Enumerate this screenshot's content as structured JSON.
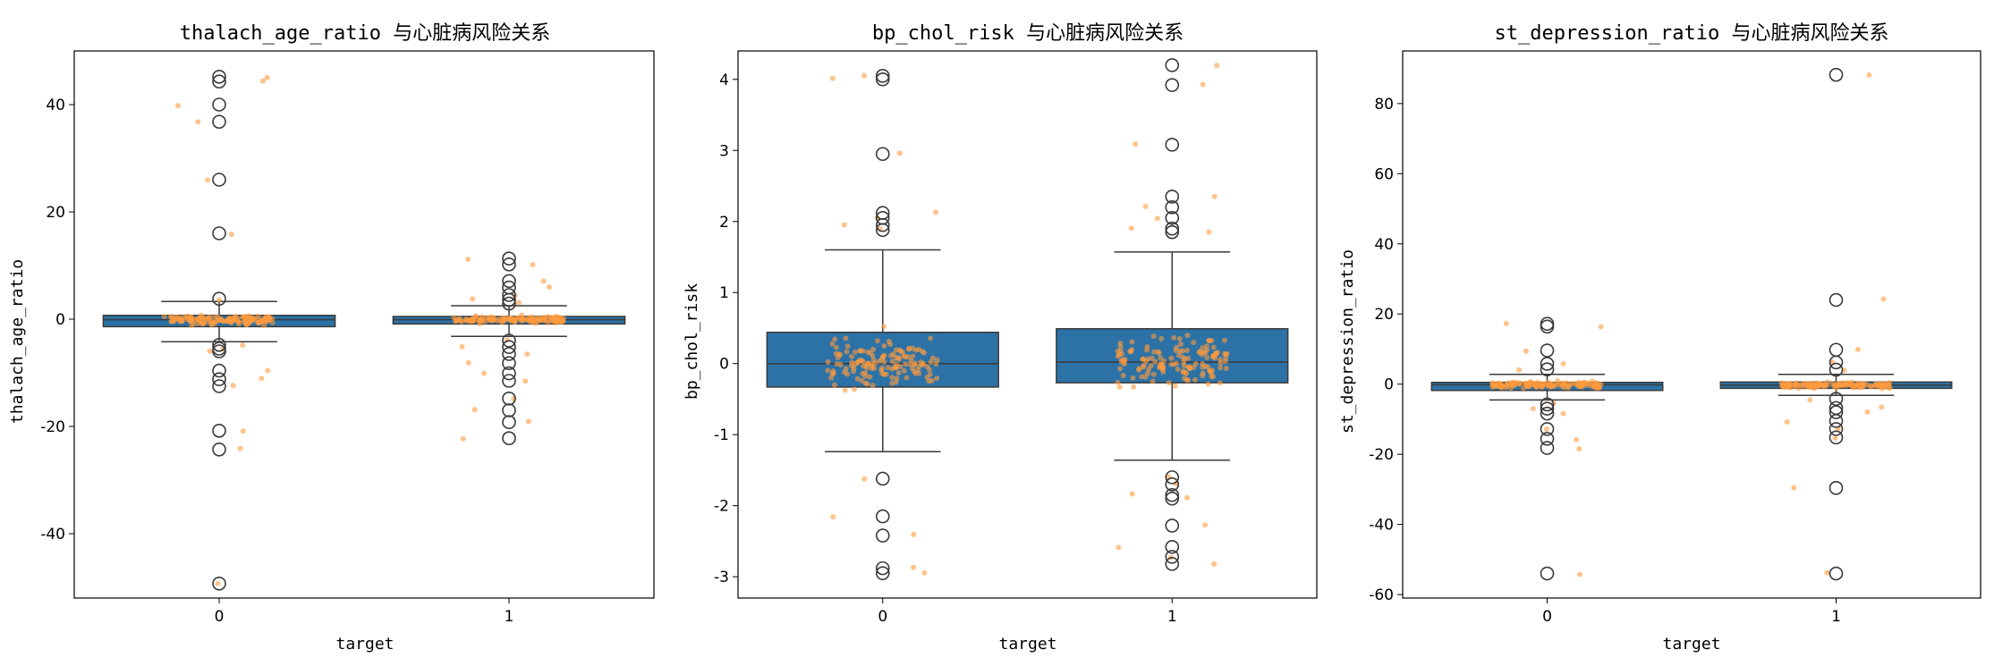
{
  "chart_data": [
    {
      "type": "box",
      "title": "thalach_age_ratio 与心脏病风险关系",
      "xlabel": "target",
      "ylabel": "thalach_age_ratio",
      "categories": [
        "0",
        "1"
      ],
      "ylim": [
        -52,
        50
      ],
      "yticks": [
        -40,
        -20,
        0,
        20,
        40
      ],
      "box_color": "#2c72a6",
      "point_color": "#ff9b3d",
      "boxes": [
        {
          "q1": -1.4,
          "median": -0.1,
          "q3": 0.7,
          "whisker_low": -4.2,
          "whisker_high": 3.3,
          "outliers": [
            45.2,
            44.3,
            40.0,
            36.8,
            26.0,
            16.0,
            3.8,
            -4.8,
            -5.5,
            -6.0,
            -9.6,
            -11.2,
            -12.5,
            -20.8,
            -24.3,
            -49.3
          ]
        },
        {
          "q1": -0.9,
          "median": -0.1,
          "q3": 0.5,
          "whisker_low": -3.2,
          "whisker_high": 2.5,
          "outliers": [
            11.3,
            10.2,
            7.1,
            5.9,
            4.5,
            3.6,
            2.9,
            -4.0,
            -5.2,
            -6.5,
            -8.2,
            -10.1,
            -11.5,
            -14.8,
            -17.0,
            -19.2,
            -22.2
          ]
        }
      ]
    },
    {
      "type": "box",
      "title": "bp_chol_risk 与心脏病风险关系",
      "xlabel": "target",
      "ylabel": "bp_chol_risk",
      "categories": [
        "0",
        "1"
      ],
      "ylim": [
        -3.3,
        4.4
      ],
      "yticks": [
        -3,
        -2,
        -1,
        0,
        1,
        2,
        3,
        4
      ],
      "box_color": "#2c72a6",
      "point_color": "#ff9b3d",
      "boxes": [
        {
          "q1": -0.33,
          "median": 0.0,
          "q3": 0.44,
          "whisker_low": -1.24,
          "whisker_high": 1.6,
          "outliers": [
            4.05,
            4.0,
            2.95,
            2.12,
            2.05,
            1.95,
            1.88,
            -1.62,
            -2.15,
            -2.42,
            -2.88,
            -2.95
          ]
        },
        {
          "q1": -0.27,
          "median": 0.02,
          "q3": 0.49,
          "whisker_low": -1.36,
          "whisker_high": 1.57,
          "outliers": [
            4.2,
            3.92,
            3.08,
            2.35,
            2.2,
            2.05,
            1.9,
            1.85,
            -1.6,
            -1.7,
            -1.85,
            -1.9,
            -2.28,
            -2.58,
            -2.72,
            -2.82
          ]
        }
      ]
    },
    {
      "type": "box",
      "title": "st_depression_ratio 与心脏病风险关系",
      "xlabel": "target",
      "ylabel": "st_depression_ratio",
      "categories": [
        "0",
        "1"
      ],
      "ylim": [
        -61,
        95
      ],
      "yticks": [
        -60,
        -40,
        -20,
        0,
        20,
        40,
        60,
        80
      ],
      "box_color": "#2c72a6",
      "point_color": "#ff9b3d",
      "boxes": [
        {
          "q1": -1.8,
          "median": -0.2,
          "q3": 0.5,
          "whisker_low": -4.5,
          "whisker_high": 2.8,
          "outliers": [
            17.2,
            16.4,
            9.6,
            5.8,
            4.2,
            -5.8,
            -7.0,
            -8.4,
            -12.8,
            -15.6,
            -18.2,
            -54.0
          ]
        },
        {
          "q1": -1.2,
          "median": -0.3,
          "q3": 0.6,
          "whisker_low": -3.2,
          "whisker_high": 2.8,
          "outliers": [
            88.2,
            24.0,
            9.8,
            6.2,
            4.1,
            -4.2,
            -6.8,
            -8.0,
            -10.5,
            -12.8,
            -15.2,
            -29.6,
            -54.0
          ]
        }
      ]
    }
  ]
}
